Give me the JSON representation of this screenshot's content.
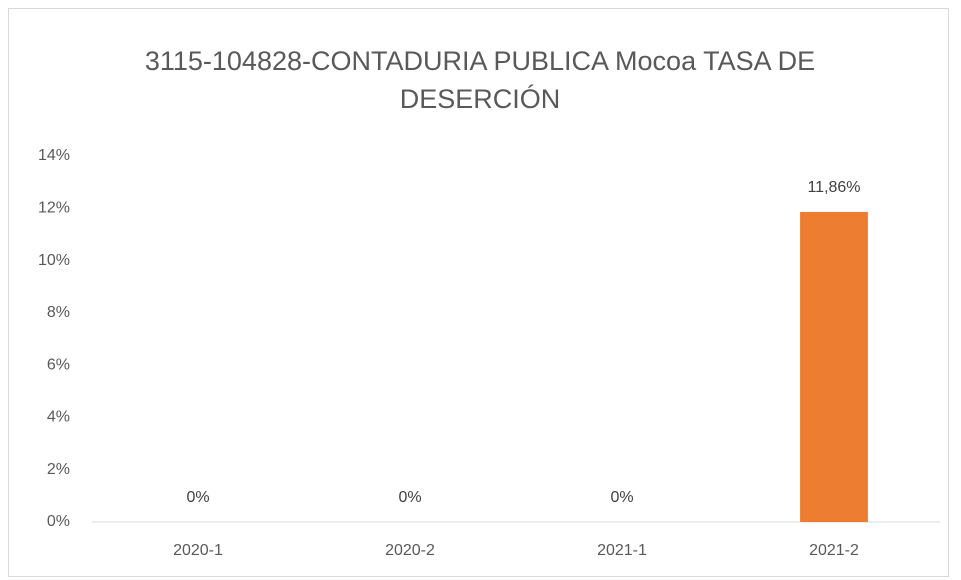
{
  "chart_data": {
    "type": "bar",
    "title": "3115-104828-CONTADURIA PUBLICA Mocoa TASA DE DESERCIÓN",
    "categories": [
      "2020-1",
      "2020-2",
      "2021-1",
      "2021-2"
    ],
    "values": [
      0,
      0,
      0,
      11.86
    ],
    "value_labels": [
      "0%",
      "0%",
      "0%",
      "11,86%"
    ],
    "color": "#ed7d31",
    "ylim": [
      0,
      14
    ],
    "yticks": [
      {
        "value": 0,
        "label": "0%"
      },
      {
        "value": 2,
        "label": "2%"
      },
      {
        "value": 4,
        "label": "4%"
      },
      {
        "value": 6,
        "label": "6%"
      },
      {
        "value": 8,
        "label": "8%"
      },
      {
        "value": 10,
        "label": "10%"
      },
      {
        "value": 12,
        "label": "12%"
      },
      {
        "value": 14,
        "label": "14%"
      }
    ],
    "grid": false
  }
}
